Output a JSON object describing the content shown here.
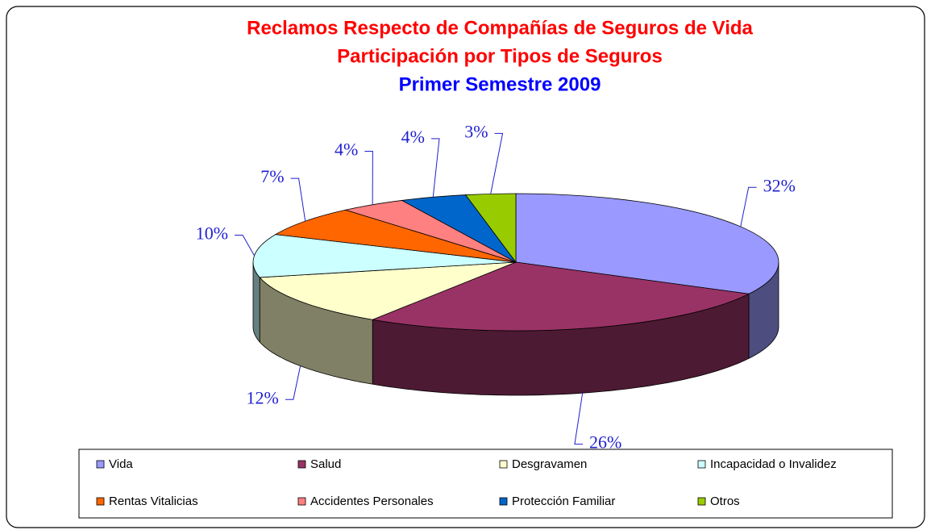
{
  "chart_data": {
    "type": "pie3d",
    "title": [
      "Reclamos Respecto de Compañías de Seguros de Vida",
      "Participación por Tipos de Seguros"
    ],
    "subtitle": "Primer Semestre 2009",
    "categories": [
      "Vida",
      "Salud",
      "Desgravamen",
      "Incapacidad o Invalidez",
      "Rentas Vitalicias",
      "Accidentes Personales",
      "Protección Familiar",
      "Otros"
    ],
    "values": [
      32,
      26,
      12,
      10,
      7,
      4,
      4,
      3
    ],
    "value_labels": [
      "32%",
      "26%",
      "12%",
      "10%",
      "7%",
      "4%",
      "4%",
      "3%"
    ],
    "colors": [
      "#9999ff",
      "#993366",
      "#ffffcc",
      "#ccffff",
      "#ff6600",
      "#ff8080",
      "#0066cc",
      "#99cc00"
    ],
    "legend": "bottom"
  }
}
